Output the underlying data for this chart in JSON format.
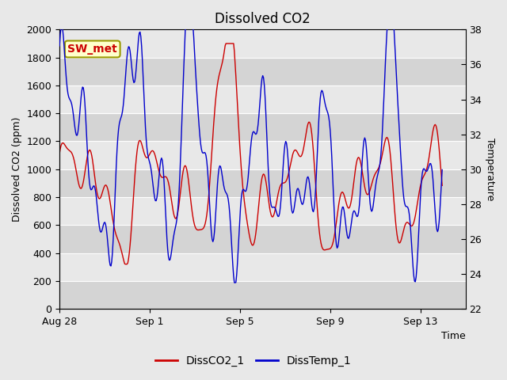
{
  "title": "Dissolved CO2",
  "xlabel": "Time",
  "ylabel_left": "Dissolved CO2 (ppm)",
  "ylabel_right": "Temperature",
  "annotation": "SW_met",
  "legend": [
    "DissCO2_1",
    "DissTemp_1"
  ],
  "co2_color": "#cc0000",
  "temp_color": "#0000cc",
  "fig_bg_color": "#e8e8e8",
  "plot_bg_color": "#d8d8d8",
  "band_colors": [
    "#d0d0d0",
    "#e0e0e0"
  ],
  "ylim_left": [
    0,
    2000
  ],
  "ylim_right": [
    22,
    38
  ],
  "grid_color": "#ffffff",
  "title_fontsize": 12,
  "label_fontsize": 9,
  "tick_fontsize": 9,
  "annot_fontsize": 10,
  "legend_fontsize": 10,
  "x_ticks": [
    "Aug 28",
    "Sep 1",
    "Sep 5",
    "Sep 9",
    "Sep 13"
  ],
  "x_tick_days_offset": [
    0,
    4,
    8,
    12,
    16
  ]
}
